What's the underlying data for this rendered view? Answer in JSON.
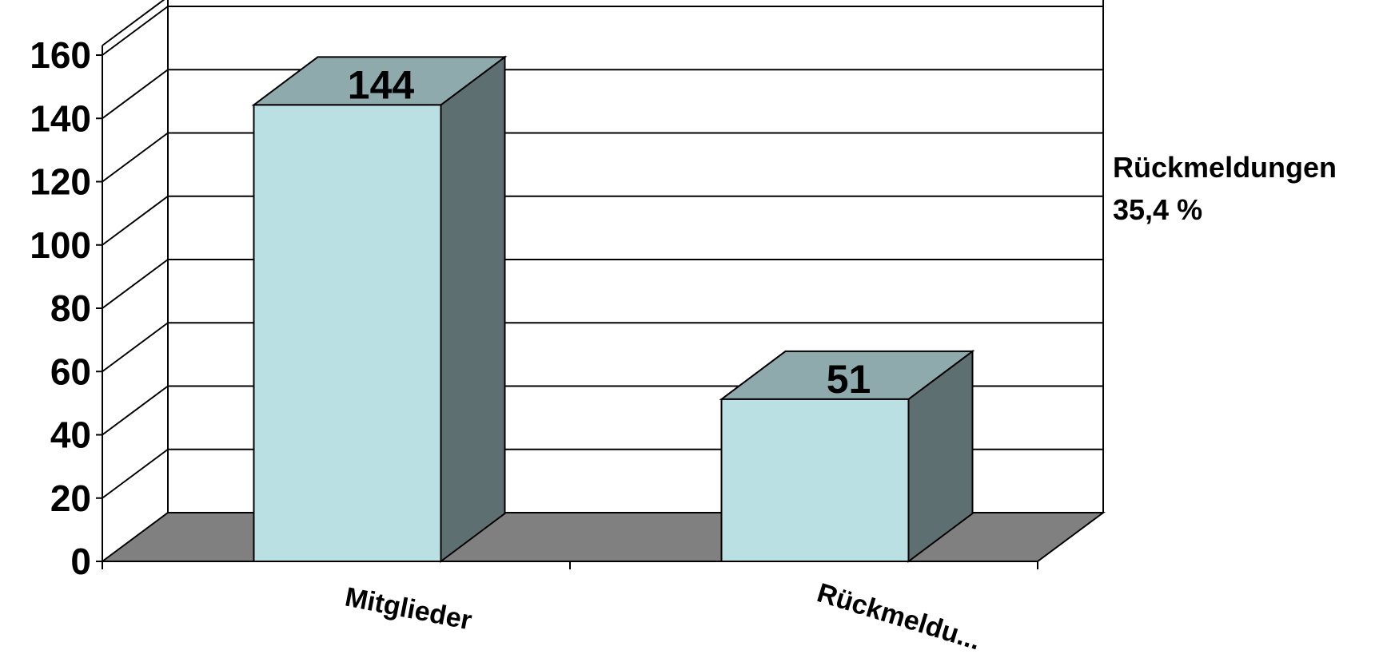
{
  "chart_data": {
    "type": "bar",
    "categories": [
      "Mitglieder",
      "Rückmeldu..."
    ],
    "values": [
      144,
      51
    ],
    "data_labels": [
      "144",
      "51"
    ],
    "yticks": [
      "0",
      "20",
      "40",
      "60",
      "80",
      "100",
      "120",
      "140",
      "160"
    ],
    "ylim": [
      0,
      160
    ],
    "annotation": [
      "Rückmeldungen",
      "35,4 %"
    ],
    "colors": {
      "bar_front": "#bbe0e3",
      "bar_top": "#8eaaad",
      "bar_side": "#5d6f71",
      "floor": "#808080"
    },
    "grid": true,
    "legend": "none"
  }
}
